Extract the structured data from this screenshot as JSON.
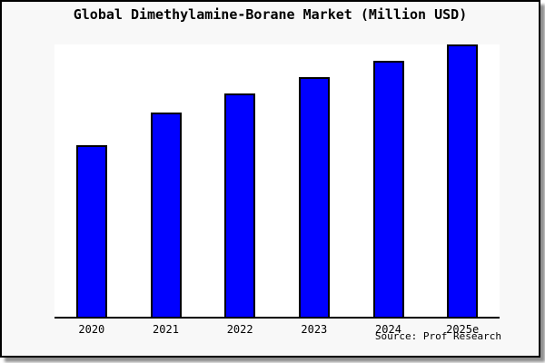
{
  "title": "Global Dimethylamine-Borane Market (Million USD)",
  "source_note": "Source: Prof Research",
  "colors": {
    "bar_fill": "#0000ff",
    "bar_outline": "#000000",
    "plot_background": "#ffffff",
    "figure_background": "#f8f8f8",
    "frame_border": "#000000",
    "drop_shadow": "#909090",
    "text": "#000000"
  },
  "chart_data": {
    "type": "bar",
    "title": "Global Dimethylamine-Borane Market (Million USD)",
    "unit": "Million USD",
    "categories": [
      "2020",
      "2021",
      "2022",
      "2023",
      "2024",
      "2025e"
    ],
    "values_pct_of_max": [
      63,
      75,
      82,
      88,
      94,
      100
    ],
    "value_note": "y-axis has no tick labels; values estimated as percent of tallest bar (2025e = 100)",
    "xlabel": "",
    "ylabel": "",
    "ylim_pct": [
      0,
      100
    ],
    "grid": false,
    "legend": "none",
    "bar_outline": true,
    "source": "Source: Prof Research"
  }
}
